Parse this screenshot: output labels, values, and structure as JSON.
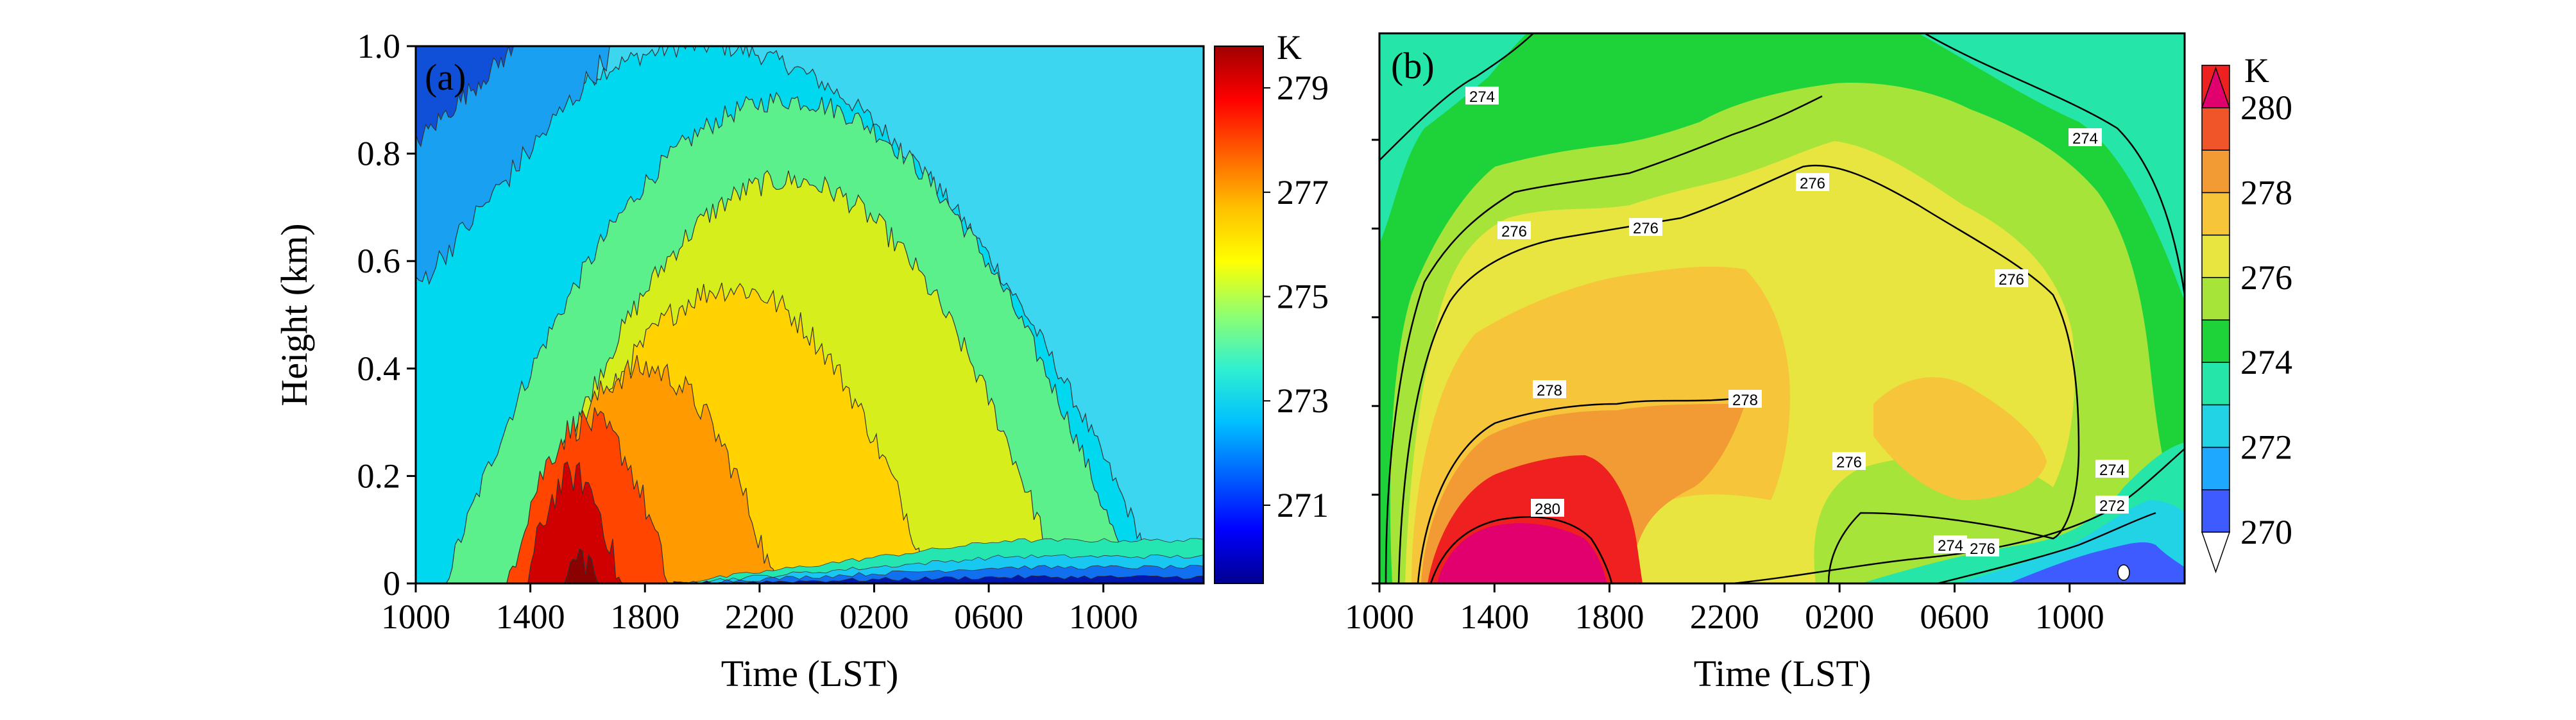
{
  "chart_data": [
    {
      "type": "heatmap",
      "panel_label": "(a)",
      "xlabel": "Time (LST)",
      "ylabel": "Height (km)",
      "x_ticks": [
        "1000",
        "1400",
        "1800",
        "2200",
        "0200",
        "0600",
        "1000"
      ],
      "y_ticks": [
        "0",
        "0.2",
        "0.4",
        "0.6",
        "0.8",
        "1.0"
      ],
      "ylim": [
        0,
        1.0
      ],
      "colorbar": {
        "unit": "K",
        "ticks": [
          "271",
          "273",
          "275",
          "277",
          "279"
        ],
        "range": [
          269.5,
          279.8
        ],
        "colormap": [
          "#00008f",
          "#0000ff",
          "#0060ff",
          "#00c0ff",
          "#30f0d0",
          "#90ff70",
          "#ffff00",
          "#ffc000",
          "#ff6000",
          "#ff0000",
          "#a00000"
        ]
      },
      "fill_bands": [
        {
          "value": 279.3,
          "color": "#8b0000",
          "peak_x_h": 5.8,
          "peak_z": 0.05,
          "sx_h": 0.6,
          "sz": 0.05
        },
        {
          "value": 278.5,
          "color": "#d00000",
          "peak_x_h": 5.5,
          "peak_z": 0.2,
          "sx_h": 1.6,
          "sz": 0.2
        },
        {
          "value": 277.5,
          "color": "#ff4500",
          "peak_x_h": 6.0,
          "peak_z": 0.3,
          "sx_h": 2.8,
          "sz": 0.3
        },
        {
          "value": 276.8,
          "color": "#ff9a00",
          "peak_x_h": 8.0,
          "peak_z": 0.4,
          "sx_h": 4.5,
          "sz": 0.4
        },
        {
          "value": 276.0,
          "color": "#ffd200",
          "peak_x_h": 11.0,
          "peak_z": 0.55,
          "sx_h": 7.0,
          "sz": 0.55
        },
        {
          "value": 275.2,
          "color": "#d6ef1c",
          "peak_x_h": 13.0,
          "peak_z": 0.75,
          "sx_h": 9.5,
          "sz": 0.75
        },
        {
          "value": 274.2,
          "color": "#5cf08c",
          "peak_x_h": 13.0,
          "peak_z": 0.9,
          "sx_h": 12.0,
          "sz": 0.9
        },
        {
          "value": 273.0,
          "color": "#00d8f0",
          "peak_x_h": 10.0,
          "peak_z": 1.0,
          "sx_h": 16.0,
          "sz": 1.0
        }
      ]
    },
    {
      "type": "heatmap",
      "panel_label": "(b)",
      "xlabel": "Time (LST)",
      "ylabel": "",
      "x_ticks": [
        "1000",
        "1400",
        "1800",
        "2200",
        "0200",
        "0600",
        "1000"
      ],
      "colorbar": {
        "unit": "K",
        "ticks": [
          "270",
          "272",
          "274",
          "276",
          "278",
          "280"
        ],
        "levels": [
          270,
          271,
          272,
          273,
          274,
          275,
          276,
          277,
          278,
          279,
          280
        ],
        "colors": [
          "#3d5bff",
          "#1fa8ff",
          "#22d3e6",
          "#25e6a8",
          "#1ed23a",
          "#a6e43a",
          "#e8e440",
          "#f6c53a",
          "#f29a34",
          "#f0552a",
          "#ee2020"
        ],
        "extend": "both",
        "over_color": "#e0006e",
        "under_color": "#ffffff"
      },
      "contour_labels": [
        "274",
        "274",
        "276",
        "276",
        "276",
        "276",
        "278",
        "278",
        "276",
        "274",
        "274",
        "276",
        "272",
        "280"
      ]
    }
  ]
}
